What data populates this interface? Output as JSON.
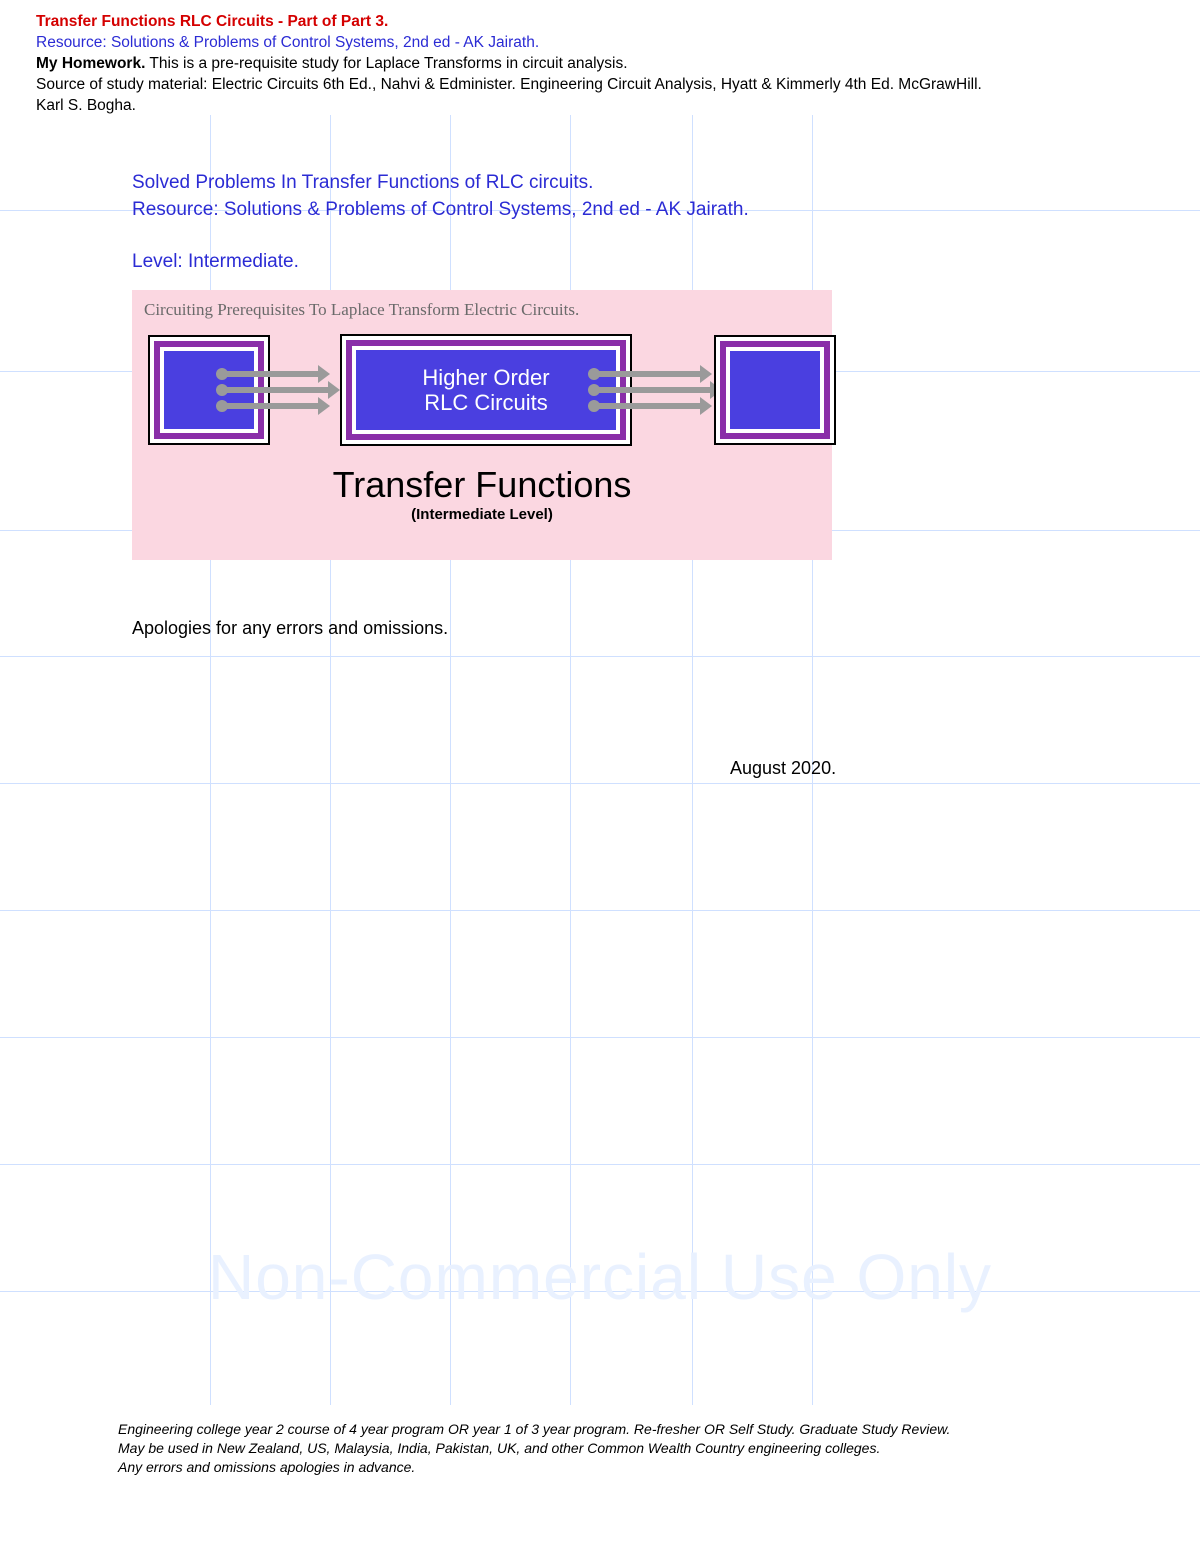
{
  "header": {
    "title": "Transfer Functions RLC Circuits - Part of Part 3.",
    "resource": "Resource: Solutions & Problems of Control Systems, 2nd ed - AK Jairath.",
    "homework_label": "My Homework.",
    "homework_body": " This is a pre-requisite study for Laplace Transforms in circuit analysis.",
    "source": "Source of study material: Electric Circuits 6th Ed., Nahvi & Edminister. Engineering Circuit Analysis, Hyatt & Kimmerly 4th Ed. McGrawHill.",
    "author": "Karl S. Bogha."
  },
  "grid": {
    "vline_color": "#cfe0ff",
    "hline_color": "#cfe0ff",
    "v_positions": [
      210,
      330,
      450,
      570,
      692,
      812
    ],
    "h_positions": [
      95,
      256,
      415,
      541,
      668,
      795,
      922,
      1049,
      1176
    ]
  },
  "intro": {
    "line1": "Solved Problems In Transfer Functions of RLC circuits.",
    "line2": "Resource: Solutions & Problems of Control Systems, 2nd ed - AK Jairath.",
    "level": "Level: Intermediate."
  },
  "pink": {
    "caption": "Circuiting Prerequisites To Laplace Transform Electric Circuits.",
    "bg_color": "#fbd7e1",
    "block_border_color": "#8a2ea8",
    "block_fill_color": "#4a3fe0",
    "arrow_color": "#9a9a9a",
    "center_label_line1": "Higher Order",
    "center_label_line2": "RLC Circuits",
    "title_big": "Transfer Functions",
    "title_sub": "(Intermediate Level)"
  },
  "body": {
    "apology": "Apologies for any errors and omissions.",
    "date": "August 2020."
  },
  "watermark": "Non-Commercial Use Only",
  "footer": {
    "line1": "Engineering college year 2 course of 4 year program OR year 1 of 3 year program. Re-fresher OR Self Study. Graduate Study Review.",
    "line2": "May be used in New Zealand, US, Malaysia, India, Pakistan, UK, and other Common Wealth Country engineering colleges.",
    "line3": "Any errors and omissions apologies in advance."
  },
  "colors": {
    "title_red": "#d40000",
    "link_blue": "#2b2bd4",
    "text": "#000000",
    "watermark": "#e9f1ff"
  }
}
